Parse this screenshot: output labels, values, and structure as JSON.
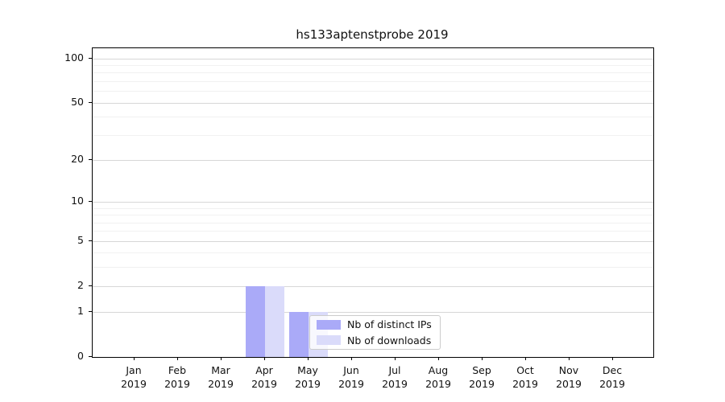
{
  "figure": {
    "title": "hs133aptenstprobe 2019"
  },
  "chart_data": {
    "type": "bar",
    "title": "hs133aptenstprobe 2019",
    "categories": [
      "Jan 2019",
      "Feb 2019",
      "Mar 2019",
      "Apr 2019",
      "May 2019",
      "Jun 2019",
      "Jul 2019",
      "Aug 2019",
      "Sep 2019",
      "Oct 2019",
      "Nov 2019",
      "Dec 2019"
    ],
    "series": [
      {
        "name": "Nb of distinct IPs",
        "color": "#aaaaf8",
        "values": [
          0,
          0,
          0,
          2,
          1,
          0,
          0,
          0,
          0,
          0,
          0,
          0
        ]
      },
      {
        "name": "Nb of downloads",
        "color": "#dadbfa",
        "values": [
          0,
          0,
          0,
          2,
          1,
          0,
          0,
          0,
          0,
          0,
          0,
          0
        ]
      }
    ],
    "xlabel": "",
    "ylabel": "",
    "yscale": "symlog",
    "ylim": [
      0,
      117
    ],
    "y_ticks": [
      0,
      1,
      2,
      5,
      10,
      20,
      50,
      100
    ],
    "y_minor_ticks": [
      3,
      4,
      6,
      7,
      8,
      9,
      30,
      40,
      60,
      70,
      80,
      90
    ],
    "grid": "horizontal",
    "legend_position": "inside-bottom-center"
  },
  "colors": {
    "grid_major": "#d7d7d7",
    "grid_minor": "#f1f1f1",
    "axis": "#000000",
    "text": "#111111"
  }
}
